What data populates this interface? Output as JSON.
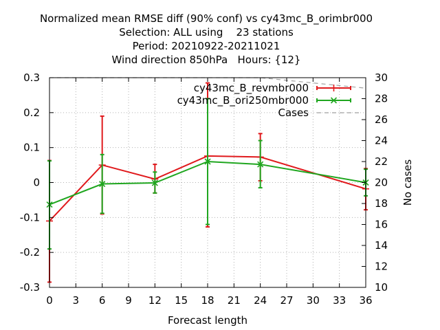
{
  "chart_data": {
    "type": "line",
    "title_lines": [
      "Normalized mean RMSE diff (90% conf) vs cy43mc_B_orimbr000",
      "Selection: ALL using    23 stations",
      "Period: 20210922-20211021",
      "Wind direction 850hPa   Hours: {12}"
    ],
    "xlabel": "Forecast length",
    "ylabel": "",
    "y2label": "No cases",
    "xlim": [
      0,
      36
    ],
    "ylim": [
      -0.3,
      0.3
    ],
    "y2lim": [
      10,
      30
    ],
    "x_ticks": [
      "0",
      "3",
      "6",
      "9",
      "12",
      "15",
      "18",
      "21",
      "24",
      "27",
      "30",
      "33",
      "36"
    ],
    "y_ticks": [
      "-0.3",
      "-0.2",
      "-0.1",
      "0",
      "0.1",
      "0.2",
      "0.3"
    ],
    "y2_ticks": [
      "10",
      "12",
      "14",
      "16",
      "18",
      "20",
      "22",
      "24",
      "26",
      "28",
      "30"
    ],
    "grid": true,
    "legend_position": "top-right",
    "series": [
      {
        "name": "cy43mc_B_revmbr000",
        "color": "#e0191c",
        "marker": "plus",
        "x": [
          0,
          6,
          12,
          18,
          24,
          36
        ],
        "y": [
          -0.11,
          0.05,
          0.01,
          0.076,
          0.073,
          -0.018
        ],
        "err_low": [
          -0.285,
          -0.09,
          -0.03,
          -0.127,
          0.005,
          -0.078
        ],
        "err_high": [
          0.063,
          0.19,
          0.052,
          0.285,
          0.14,
          0.04
        ]
      },
      {
        "name": "cy43mc_B_ori250mbr000",
        "color": "#1fa61f",
        "marker": "cross",
        "x": [
          0,
          6,
          12,
          18,
          24,
          36
        ],
        "y": [
          -0.063,
          -0.004,
          -0.001,
          0.06,
          0.052,
          0.0
        ],
        "err_low": [
          -0.19,
          -0.088,
          -0.03,
          -0.12,
          -0.015,
          -0.038
        ],
        "err_high": [
          0.062,
          0.08,
          0.03,
          0.24,
          0.12,
          0.038
        ]
      },
      {
        "name": "Cases",
        "color": "#a0a0a0",
        "style": "dashed",
        "axis": "y2",
        "x": [
          0,
          6,
          12,
          18,
          24,
          36
        ],
        "y": [
          30,
          30,
          30,
          30,
          30,
          29
        ]
      }
    ]
  }
}
